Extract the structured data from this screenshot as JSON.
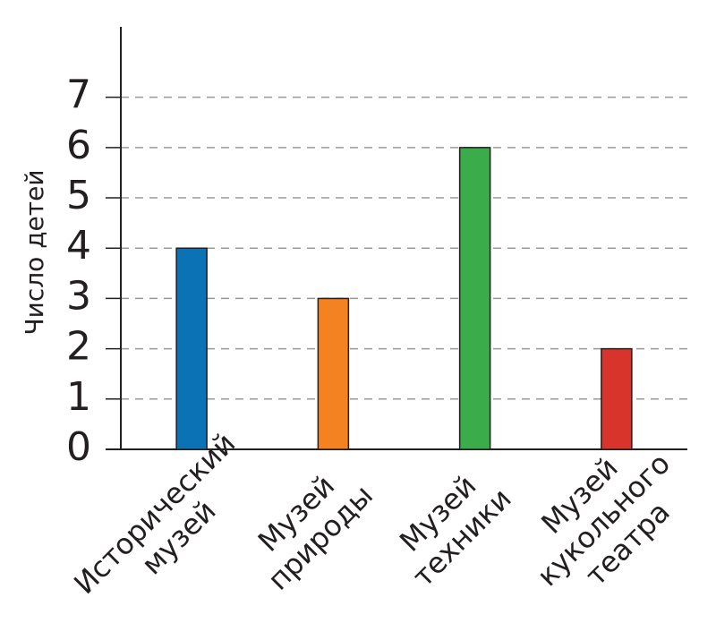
{
  "chart_data": {
    "type": "bar",
    "y_label": "Число детей",
    "categories": [
      [
        "Исторический",
        "музей"
      ],
      [
        "Музей",
        "природы"
      ],
      [
        "Музей",
        "техники"
      ],
      [
        "Музей",
        "кукольного",
        "театра"
      ]
    ],
    "values": [
      4,
      3,
      6,
      2
    ],
    "colors": [
      "#0a72b5",
      "#f58220",
      "#3bac4a",
      "#d9342b"
    ],
    "ylim": [
      0,
      8.4
    ],
    "yticks": [
      0,
      1,
      2,
      3,
      4,
      5,
      6,
      7
    ],
    "grid": true
  }
}
